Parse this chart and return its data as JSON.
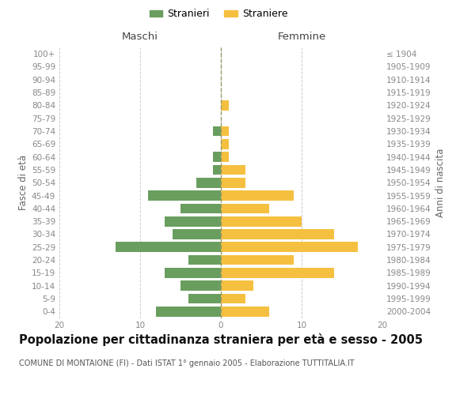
{
  "age_groups": [
    "0-4",
    "5-9",
    "10-14",
    "15-19",
    "20-24",
    "25-29",
    "30-34",
    "35-39",
    "40-44",
    "45-49",
    "50-54",
    "55-59",
    "60-64",
    "65-69",
    "70-74",
    "75-79",
    "80-84",
    "85-89",
    "90-94",
    "95-99",
    "100+"
  ],
  "birth_years": [
    "2000-2004",
    "1995-1999",
    "1990-1994",
    "1985-1989",
    "1980-1984",
    "1975-1979",
    "1970-1974",
    "1965-1969",
    "1960-1964",
    "1955-1959",
    "1950-1954",
    "1945-1949",
    "1940-1944",
    "1935-1939",
    "1930-1934",
    "1925-1929",
    "1920-1924",
    "1915-1919",
    "1910-1914",
    "1905-1909",
    "≤ 1904"
  ],
  "maschi": [
    8,
    4,
    5,
    7,
    4,
    13,
    6,
    7,
    5,
    9,
    3,
    1,
    1,
    0,
    1,
    0,
    0,
    0,
    0,
    0,
    0
  ],
  "femmine": [
    6,
    3,
    4,
    14,
    9,
    17,
    14,
    10,
    6,
    9,
    3,
    3,
    1,
    1,
    1,
    0,
    1,
    0,
    0,
    0,
    0
  ],
  "maschi_color": "#6a9e5f",
  "femmine_color": "#f5c040",
  "background_color": "#ffffff",
  "grid_color": "#cccccc",
  "title": "Popolazione per cittadinanza straniera per età e sesso - 2005",
  "subtitle": "COMUNE DI MONTAIONE (FI) - Dati ISTAT 1° gennaio 2005 - Elaborazione TUTTITALIA.IT",
  "ylabel_left": "Fasce di età",
  "ylabel_right": "Anni di nascita",
  "maschi_label": "Stranieri",
  "femmine_label": "Straniere",
  "header_maschi": "Maschi",
  "header_femmine": "Femmine",
  "xlim": 20,
  "title_fontsize": 10.5,
  "subtitle_fontsize": 7.0,
  "axis_fontsize": 7.5
}
